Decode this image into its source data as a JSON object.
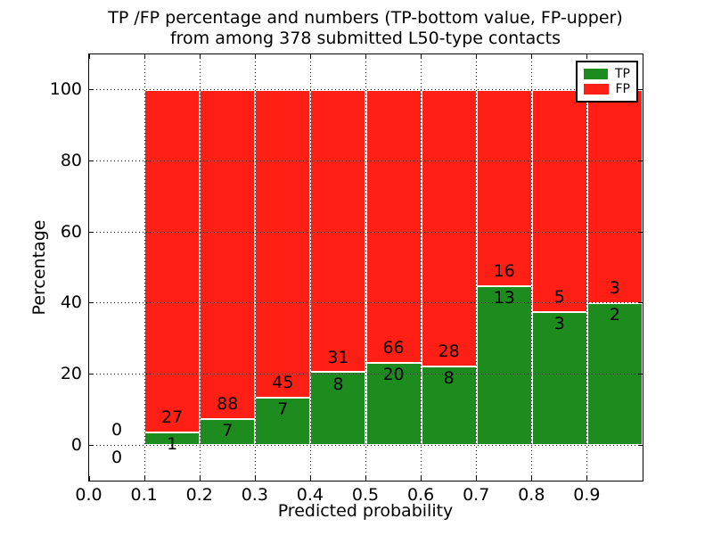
{
  "chart_data": {
    "type": "bar",
    "stacked": true,
    "title": "TP /FP percentage and numbers (TP-bottom value, FP-upper)\nfrom among 378 submitted L50-type contacts",
    "title_line1": "TP /FP percentage and numbers (TP-bottom value, FP-upper)",
    "title_line2": "from among 378 submitted L50-type contacts",
    "xlabel": "Predicted probability",
    "ylabel": "Percentage",
    "xlim": [
      0.0,
      1.0
    ],
    "ylim": [
      -10,
      110
    ],
    "xtick_values": [
      0.0,
      0.1,
      0.2,
      0.3,
      0.4,
      0.5,
      0.6,
      0.7,
      0.8,
      0.9
    ],
    "xtick_labels": [
      "0.0",
      "0.1",
      "0.2",
      "0.3",
      "0.4",
      "0.5",
      "0.6",
      "0.7",
      "0.8",
      "0.9"
    ],
    "ytick_values": [
      0,
      20,
      40,
      60,
      80,
      100
    ],
    "ytick_labels": [
      "0",
      "20",
      "40",
      "60",
      "80",
      "100"
    ],
    "grid": "dotted",
    "legend_position": "upper-right",
    "bins": [
      [
        0.0,
        0.1
      ],
      [
        0.1,
        0.2
      ],
      [
        0.2,
        0.3
      ],
      [
        0.3,
        0.4
      ],
      [
        0.4,
        0.5
      ],
      [
        0.5,
        0.6
      ],
      [
        0.6,
        0.7
      ],
      [
        0.7,
        0.8
      ],
      [
        0.8,
        0.9
      ],
      [
        0.9,
        1.0
      ]
    ],
    "series": [
      {
        "name": "TP",
        "color": "#1e8b1e",
        "counts": [
          0,
          1,
          7,
          7,
          8,
          20,
          8,
          13,
          3,
          2
        ],
        "pct": [
          0,
          3.571,
          7.368,
          13.462,
          20.513,
          23.256,
          22.222,
          44.828,
          37.5,
          40.0
        ]
      },
      {
        "name": "FP",
        "color": "#ff1f15",
        "counts": [
          0,
          27,
          88,
          45,
          31,
          66,
          28,
          16,
          5,
          3
        ],
        "pct": [
          0,
          96.429,
          92.632,
          86.538,
          79.487,
          76.744,
          77.778,
          55.172,
          62.5,
          60.0
        ]
      }
    ],
    "total_submitted": 378
  },
  "colors": {
    "background": "#ffffff",
    "text": "#000000",
    "grid": "#000000",
    "bar_edge": "#ffffff",
    "tp": "#1e8b1e",
    "fp": "#ff1f15"
  }
}
